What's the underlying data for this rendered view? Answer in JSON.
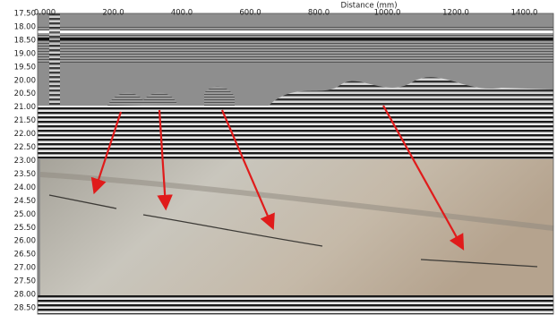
{
  "x_axis": {
    "title": "Distance (mm)",
    "tick_labels": [
      "0.000",
      "200.0",
      "400.0",
      "600.0",
      "800.0",
      "1000.0",
      "1200.0",
      "1400.0"
    ]
  },
  "y_axis": {
    "tick_labels": [
      "17.50",
      "18.00",
      "18.50",
      "19.00",
      "19.50",
      "20.00",
      "20.50",
      "21.00",
      "21.50",
      "22.00",
      "22.50",
      "23.00",
      "23.50",
      "24.00",
      "24.50",
      "25.00",
      "25.50",
      "26.00",
      "26.50",
      "27.00",
      "27.50",
      "28.00",
      "28.50"
    ]
  }
}
